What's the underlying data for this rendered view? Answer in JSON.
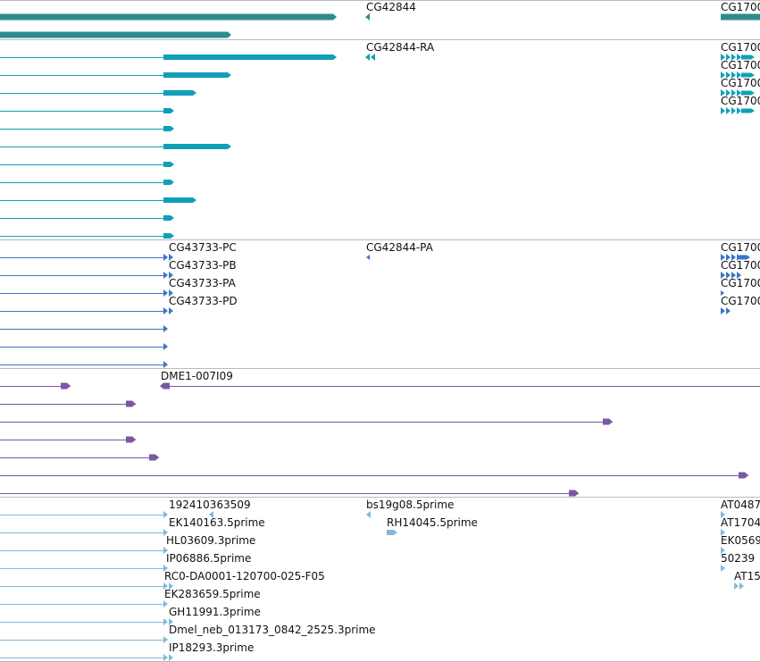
{
  "colors": {
    "gene": "#2f8c8c",
    "transcript": "#0fa0b8",
    "cds": "#3c74c8",
    "clone": "#7a58a0",
    "est": "#86b8d8",
    "divider": "#bbbbbb"
  },
  "tracks": [
    {
      "name": "gene",
      "labels": [
        {
          "id": "gene-cg42844",
          "text": "CG42844"
        },
        {
          "id": "gene-cg1700",
          "text": "CG1700"
        }
      ]
    },
    {
      "name": "transcript",
      "labels": [
        {
          "id": "tx-cg42844-ra",
          "text": "CG42844-RA"
        },
        {
          "id": "tx-cg1700-a",
          "text": "CG1700"
        },
        {
          "id": "tx-cg1700-b",
          "text": "CG1700"
        },
        {
          "id": "tx-cg1700-c",
          "text": "CG1700"
        },
        {
          "id": "tx-cg1700-d",
          "text": "CG1700"
        }
      ]
    },
    {
      "name": "cds",
      "labels": [
        {
          "id": "cds-cg43733-pc",
          "text": "CG43733-PC"
        },
        {
          "id": "cds-cg43733-pb",
          "text": "CG43733-PB"
        },
        {
          "id": "cds-cg43733-pa",
          "text": "CG43733-PA"
        },
        {
          "id": "cds-cg43733-pd",
          "text": "CG43733-PD"
        },
        {
          "id": "cds-cg42844-pa",
          "text": "CG42844-PA"
        },
        {
          "id": "cds-cg1700-a",
          "text": "CG1700"
        },
        {
          "id": "cds-cg1700-b",
          "text": "CG1700"
        },
        {
          "id": "cds-cg1700-c",
          "text": "CG1700"
        },
        {
          "id": "cds-cg1700-d",
          "text": "CG1700"
        }
      ]
    },
    {
      "name": "clone",
      "labels": [
        {
          "id": "clone-dme1",
          "text": "DME1-007I09"
        }
      ]
    },
    {
      "name": "est",
      "labels": [
        {
          "id": "est-192410363509",
          "text": "192410363509"
        },
        {
          "id": "est-ek140163",
          "text": "EK140163.5prime"
        },
        {
          "id": "est-hl03609",
          "text": "HL03609.3prime"
        },
        {
          "id": "est-ip06886",
          "text": "IP06886.5prime"
        },
        {
          "id": "est-rc0",
          "text": "RC0-DA0001-120700-025-F05"
        },
        {
          "id": "est-ek283659",
          "text": "EK283659.5prime"
        },
        {
          "id": "est-gh11991",
          "text": "GH11991.3prime"
        },
        {
          "id": "est-dmel-neb",
          "text": "Dmel_neb_013173_0842_2525.3prime"
        },
        {
          "id": "est-ip18293",
          "text": "IP18293.3prime"
        },
        {
          "id": "est-bs19g08",
          "text": "bs19g08.5prime"
        },
        {
          "id": "est-rh14045",
          "text": "RH14045.5prime"
        },
        {
          "id": "est-at0487",
          "text": "AT0487"
        },
        {
          "id": "est-at1704",
          "text": "AT1704"
        },
        {
          "id": "est-ek0569",
          "text": "EK0569"
        },
        {
          "id": "est-50239",
          "text": "50239"
        },
        {
          "id": "est-at15",
          "text": "AT15"
        }
      ]
    }
  ]
}
